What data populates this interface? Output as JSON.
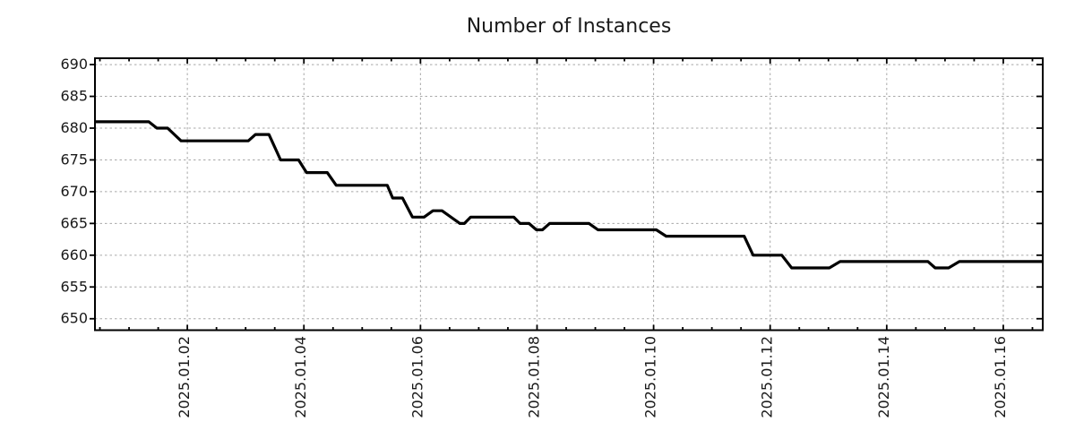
{
  "chart_data": {
    "type": "line",
    "title": "Number of Instances",
    "xlabel": "",
    "ylabel": "",
    "x_unit": "days since 2025-01-01 00:00",
    "xlim": [
      -0.585,
      15.677
    ],
    "ylim": [
      648.2,
      691.0
    ],
    "x_major_ticks": [
      1,
      3,
      5,
      7,
      9,
      11,
      13,
      15
    ],
    "x_major_tick_labels": [
      "2025.01.02",
      "2025.01.04",
      "2025.01.06",
      "2025.01.08",
      "2025.01.10",
      "2025.01.12",
      "2025.01.14",
      "2025.01.16"
    ],
    "x_minor_tick_interval": 0.5,
    "y_ticks": [
      650,
      655,
      660,
      665,
      670,
      675,
      680,
      685,
      690
    ],
    "y_tick_labels": [
      "650",
      "655",
      "660",
      "665",
      "670",
      "675",
      "680",
      "685",
      "690"
    ],
    "grid": {
      "major_x": true,
      "major_y": true,
      "style": "dotted",
      "color": "#a8a8a8"
    },
    "legend": null,
    "axis_color": "#000000",
    "text_color": "#1a1a1a",
    "series": [
      {
        "name": "Number of Instances",
        "color": "#000000",
        "line_width": 3.2,
        "points": [
          [
            -0.585,
            681
          ],
          [
            0.338,
            681
          ],
          [
            0.477,
            680
          ],
          [
            0.662,
            680
          ],
          [
            0.892,
            678
          ],
          [
            2.046,
            678
          ],
          [
            2.169,
            679
          ],
          [
            2.4,
            679
          ],
          [
            2.6,
            675
          ],
          [
            2.908,
            675
          ],
          [
            3.046,
            673
          ],
          [
            3.4,
            673
          ],
          [
            3.554,
            671
          ],
          [
            4.431,
            671
          ],
          [
            4.523,
            669
          ],
          [
            4.692,
            669
          ],
          [
            4.862,
            666
          ],
          [
            5.062,
            666
          ],
          [
            5.215,
            667
          ],
          [
            5.369,
            667
          ],
          [
            5.677,
            665
          ],
          [
            5.754,
            665
          ],
          [
            5.862,
            666
          ],
          [
            6.6,
            666
          ],
          [
            6.708,
            665
          ],
          [
            6.862,
            665
          ],
          [
            6.989,
            664
          ],
          [
            7.092,
            664
          ],
          [
            7.215,
            665
          ],
          [
            7.892,
            665
          ],
          [
            8.046,
            664
          ],
          [
            9.046,
            664
          ],
          [
            9.215,
            663
          ],
          [
            10.554,
            663
          ],
          [
            10.708,
            660
          ],
          [
            11.2,
            660
          ],
          [
            11.369,
            658
          ],
          [
            12.015,
            658
          ],
          [
            12.2,
            659
          ],
          [
            13.708,
            659
          ],
          [
            13.831,
            658
          ],
          [
            14.062,
            658
          ],
          [
            14.246,
            659
          ],
          [
            15.677,
            659
          ]
        ]
      }
    ]
  }
}
